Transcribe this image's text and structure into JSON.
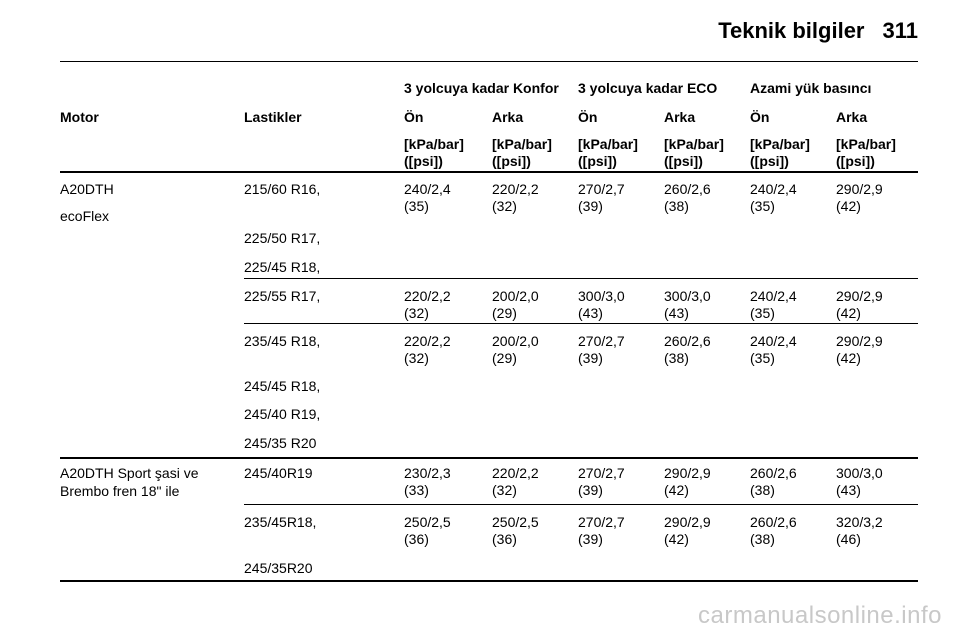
{
  "header": {
    "title": "Teknik bilgiler",
    "page_number": "311"
  },
  "table": {
    "group_headers": [
      "3 yolcuya kadar Konfor",
      "3 yolcuya kadar ECO",
      "Azami yük basıncı"
    ],
    "col_motor": "Motor",
    "col_tires": "Lastikler",
    "axles": [
      "Ön",
      "Arka",
      "Ön",
      "Arka",
      "Ön",
      "Arka"
    ],
    "units": [
      "[kPa/bar]",
      "([psi])"
    ],
    "engine1": [
      "A20DTH",
      "ecoFlex"
    ],
    "engine2": [
      "A20DTH Sport şasi ve",
      "Brembo fren 18\" ile"
    ],
    "tires": [
      "215/60 R16,",
      "225/50 R17,",
      "225/45 R18,",
      "225/55 R17,",
      "235/45 R18,",
      "245/45 R18,",
      "245/40 R19,",
      "245/35 R20",
      "245/40R19",
      "235/45R18,",
      "245/35R20"
    ],
    "values": [
      [
        [
          "240/2,4",
          "(35)"
        ],
        [
          "220/2,2",
          "(32)"
        ],
        [
          "270/2,7",
          "(39)"
        ],
        [
          "260/2,6",
          "(38)"
        ],
        [
          "240/2,4",
          "(35)"
        ],
        [
          "290/2,9",
          "(42)"
        ]
      ],
      [
        [
          "220/2,2",
          "(32)"
        ],
        [
          "200/2,0",
          "(29)"
        ],
        [
          "300/3,0",
          "(43)"
        ],
        [
          "300/3,0",
          "(43)"
        ],
        [
          "240/2,4",
          "(35)"
        ],
        [
          "290/2,9",
          "(42)"
        ]
      ],
      [
        [
          "220/2,2",
          "(32)"
        ],
        [
          "200/2,0",
          "(29)"
        ],
        [
          "270/2,7",
          "(39)"
        ],
        [
          "260/2,6",
          "(38)"
        ],
        [
          "240/2,4",
          "(35)"
        ],
        [
          "290/2,9",
          "(42)"
        ]
      ],
      [
        [
          "230/2,3",
          "(33)"
        ],
        [
          "220/2,2",
          "(32)"
        ],
        [
          "270/2,7",
          "(39)"
        ],
        [
          "290/2,9",
          "(42)"
        ],
        [
          "260/2,6",
          "(38)"
        ],
        [
          "300/3,0",
          "(43)"
        ]
      ],
      [
        [
          "250/2,5",
          "(36)"
        ],
        [
          "250/2,5",
          "(36)"
        ],
        [
          "270/2,7",
          "(39)"
        ],
        [
          "290/2,9",
          "(42)"
        ],
        [
          "260/2,6",
          "(38)"
        ],
        [
          "320/3,2",
          "(46)"
        ]
      ]
    ]
  },
  "watermark": "carmanualsonline.info"
}
